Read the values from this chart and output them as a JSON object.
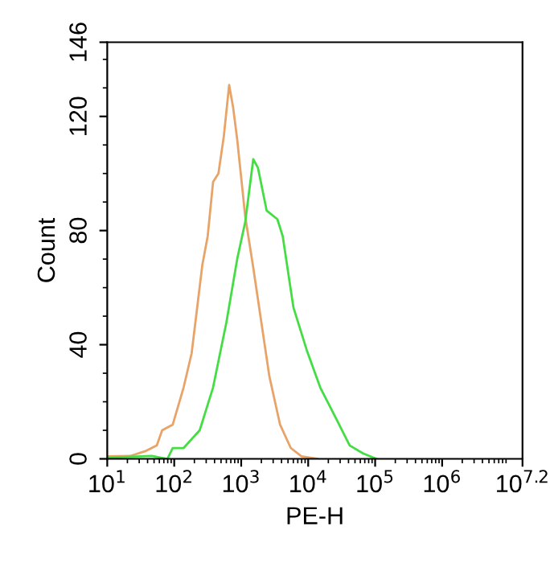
{
  "chart_data": {
    "type": "line",
    "xlabel": "PE-H",
    "ylabel": "Count",
    "log": "x",
    "grid": false,
    "legend": false,
    "marker": "none",
    "line_style": "solid",
    "xlim": [
      10,
      15848932
    ],
    "xticks": [
      {
        "value": 10,
        "label": "10$^{1}$"
      },
      {
        "value": 100,
        "label": "10$^{2}$"
      },
      {
        "value": 1000,
        "label": "10$^{3}$"
      },
      {
        "value": 10000,
        "label": "10$^{4}$"
      },
      {
        "value": 100000,
        "label": "10$^{5}$"
      },
      {
        "value": 1000000,
        "label": "10$^{6}$"
      },
      {
        "value": 15848932,
        "label": "10$^{7.2}$"
      }
    ],
    "ylim": [
      0,
      146
    ],
    "yticks": [
      0,
      40,
      80,
      120,
      146
    ],
    "series": [
      {
        "color": "#e8a468",
        "x": [
          10,
          21.9,
          38,
          55,
          66,
          95,
          138,
          182,
          263,
          316,
          380,
          457,
          550,
          661,
          759,
          871,
          1148,
          1514,
          1995,
          2630,
          3802,
          5495,
          7943,
          13800
        ],
        "values": [
          0.9,
          1,
          2.8,
          4.7,
          10,
          12,
          25,
          37,
          68,
          78,
          97,
          100,
          113,
          131,
          123,
          112,
          85,
          67,
          48,
          29,
          12,
          3.8,
          0.9,
          0
        ]
      },
      {
        "color": "#44dd44",
        "x": [
          10,
          46,
          79,
          95,
          138,
          240,
          380,
          603,
          871,
          1148,
          1514,
          1778,
          2399,
          3467,
          4169,
          6026,
          9550,
          15140,
          26300,
          41690,
          66070,
          104700
        ],
        "values": [
          0.4,
          1,
          0,
          3.8,
          3.8,
          10,
          25,
          48,
          70,
          83,
          105,
          102,
          87,
          84,
          78,
          53,
          38,
          25,
          14,
          4.7,
          1.9,
          0
        ]
      }
    ]
  }
}
